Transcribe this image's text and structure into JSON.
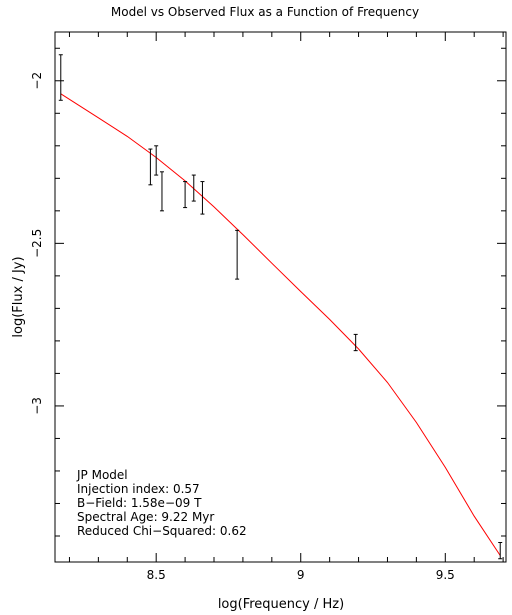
{
  "chart_data": {
    "type": "scatter",
    "title": "Model vs Observed Flux as a Function of Frequency",
    "xlabel": "log(Frequency / Hz)",
    "ylabel": "log(Flux / Jy)",
    "xlim": [
      8.15,
      9.71
    ],
    "ylim": [
      -3.48,
      -1.85
    ],
    "xticks": [
      {
        "value": 8.5,
        "label": "8.5"
      },
      {
        "value": 9.0,
        "label": "9"
      },
      {
        "value": 9.5,
        "label": "9.5"
      }
    ],
    "yticks": [
      {
        "value": -2.0,
        "label": "−2"
      },
      {
        "value": -2.5,
        "label": "−2.5"
      },
      {
        "value": -3.0,
        "label": "−3"
      }
    ],
    "grid": false,
    "series": [
      {
        "kind": "observed-errorbars",
        "color": "#000000",
        "points": [
          {
            "x": 8.17,
            "y": -1.99,
            "ylow": -2.06,
            "yhigh": -1.92
          },
          {
            "x": 8.48,
            "y": -2.27,
            "ylow": -2.32,
            "yhigh": -2.21
          },
          {
            "x": 8.5,
            "y": -2.25,
            "ylow": -2.29,
            "yhigh": -2.2
          },
          {
            "x": 8.52,
            "y": -2.34,
            "ylow": -2.4,
            "yhigh": -2.28
          },
          {
            "x": 8.6,
            "y": -2.35,
            "ylow": -2.39,
            "yhigh": -2.31
          },
          {
            "x": 8.63,
            "y": -2.33,
            "ylow": -2.37,
            "yhigh": -2.29
          },
          {
            "x": 8.66,
            "y": -2.36,
            "ylow": -2.41,
            "yhigh": -2.31
          },
          {
            "x": 8.78,
            "y": -2.53,
            "ylow": -2.61,
            "yhigh": -2.46
          },
          {
            "x": 9.19,
            "y": -2.81,
            "ylow": -2.83,
            "yhigh": -2.78
          },
          {
            "x": 9.69,
            "y": -3.45,
            "ylow": -3.47,
            "yhigh": -3.42
          }
        ]
      },
      {
        "kind": "model-curve",
        "color": "#ff0000",
        "x": [
          8.17,
          8.3,
          8.4,
          8.5,
          8.6,
          8.7,
          8.8,
          8.9,
          9.0,
          9.1,
          9.2,
          9.3,
          9.4,
          9.5,
          9.6,
          9.69
        ],
        "y": [
          -2.04,
          -2.114,
          -2.171,
          -2.236,
          -2.308,
          -2.388,
          -2.473,
          -2.561,
          -2.648,
          -2.734,
          -2.825,
          -2.928,
          -3.051,
          -3.189,
          -3.339,
          -3.46
        ]
      }
    ],
    "annotation": [
      "JP Model",
      "Injection index: 0.57",
      "B−Field: 1.58e−09 T",
      "Spectral Age: 9.22 Myr",
      "Reduced Chi−Squared: 0.62"
    ]
  }
}
